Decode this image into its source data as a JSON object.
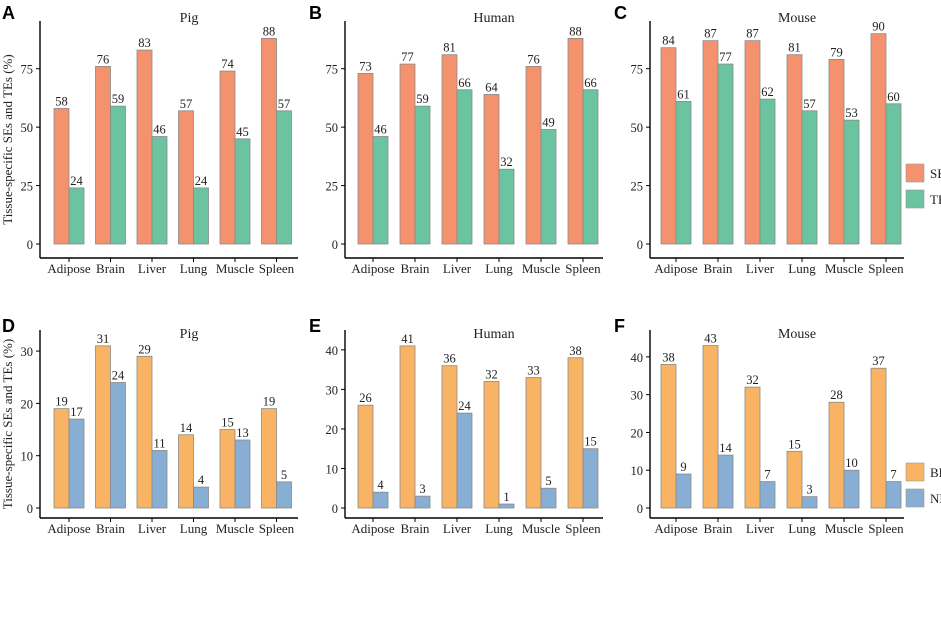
{
  "ylabel": "Tissue-specific SEs and TEs (%)",
  "legend_top": [
    {
      "name": "SE",
      "color": "#F4926E"
    },
    {
      "name": "TE",
      "color": "#6BC3A0"
    }
  ],
  "legend_bottom": [
    {
      "name": "BD",
      "color": "#F8B464"
    },
    {
      "name": "ND",
      "color": "#88AFD3"
    }
  ],
  "chart_data": [
    {
      "panel": "A",
      "title": "Pig",
      "type": "bar",
      "categories": [
        "Adipose",
        "Brain",
        "Liver",
        "Lung",
        "Muscle",
        "Spleen"
      ],
      "series": [
        {
          "name": "SE",
          "values": [
            58,
            76,
            83,
            57,
            74,
            88
          ]
        },
        {
          "name": "TE",
          "values": [
            24,
            59,
            46,
            24,
            45,
            57
          ]
        }
      ],
      "yticks": [
        0,
        25,
        50,
        75
      ],
      "ylim": [
        0,
        92
      ]
    },
    {
      "panel": "B",
      "title": "Human",
      "type": "bar",
      "categories": [
        "Adipose",
        "Brain",
        "Liver",
        "Lung",
        "Muscle",
        "Spleen"
      ],
      "series": [
        {
          "name": "SE",
          "values": [
            73,
            77,
            81,
            64,
            76,
            88
          ]
        },
        {
          "name": "TE",
          "values": [
            46,
            59,
            66,
            32,
            49,
            66
          ]
        }
      ],
      "yticks": [
        0,
        25,
        50,
        75
      ],
      "ylim": [
        0,
        92
      ]
    },
    {
      "panel": "C",
      "title": "Mouse",
      "type": "bar",
      "categories": [
        "Adipose",
        "Brain",
        "Liver",
        "Lung",
        "Muscle",
        "Spleen"
      ],
      "series": [
        {
          "name": "SE",
          "values": [
            84,
            87,
            87,
            81,
            79,
            90
          ]
        },
        {
          "name": "TE",
          "values": [
            61,
            77,
            62,
            57,
            53,
            60
          ]
        }
      ],
      "yticks": [
        0,
        25,
        50,
        75
      ],
      "ylim": [
        0,
        92
      ]
    },
    {
      "panel": "D",
      "title": "Pig",
      "type": "bar",
      "categories": [
        "Adipose",
        "Brain",
        "Liver",
        "Lung",
        "Muscle",
        "Spleen"
      ],
      "series": [
        {
          "name": "BD",
          "values": [
            19,
            31,
            29,
            14,
            15,
            19
          ]
        },
        {
          "name": "ND",
          "values": [
            17,
            24,
            11,
            4,
            13,
            5
          ]
        }
      ],
      "yticks": [
        0,
        10,
        20,
        30
      ],
      "ylim": [
        0,
        32.5
      ]
    },
    {
      "panel": "E",
      "title": "Human",
      "type": "bar",
      "categories": [
        "Adipose",
        "Brain",
        "Liver",
        "Lung",
        "Muscle",
        "Spleen"
      ],
      "series": [
        {
          "name": "BD",
          "values": [
            26,
            41,
            36,
            32,
            33,
            38
          ]
        },
        {
          "name": "ND",
          "values": [
            4,
            3,
            24,
            1,
            5,
            15
          ]
        }
      ],
      "yticks": [
        0,
        10,
        20,
        30,
        40
      ],
      "ylim": [
        0,
        43
      ]
    },
    {
      "panel": "F",
      "title": "Mouse",
      "type": "bar",
      "categories": [
        "Adipose",
        "Brain",
        "Liver",
        "Lung",
        "Muscle",
        "Spleen"
      ],
      "series": [
        {
          "name": "BD",
          "values": [
            38,
            43,
            32,
            15,
            28,
            37
          ]
        },
        {
          "name": "ND",
          "values": [
            9,
            14,
            7,
            3,
            10,
            7
          ]
        }
      ],
      "yticks": [
        0,
        10,
        20,
        30,
        40
      ],
      "ylim": [
        0,
        45
      ]
    }
  ]
}
